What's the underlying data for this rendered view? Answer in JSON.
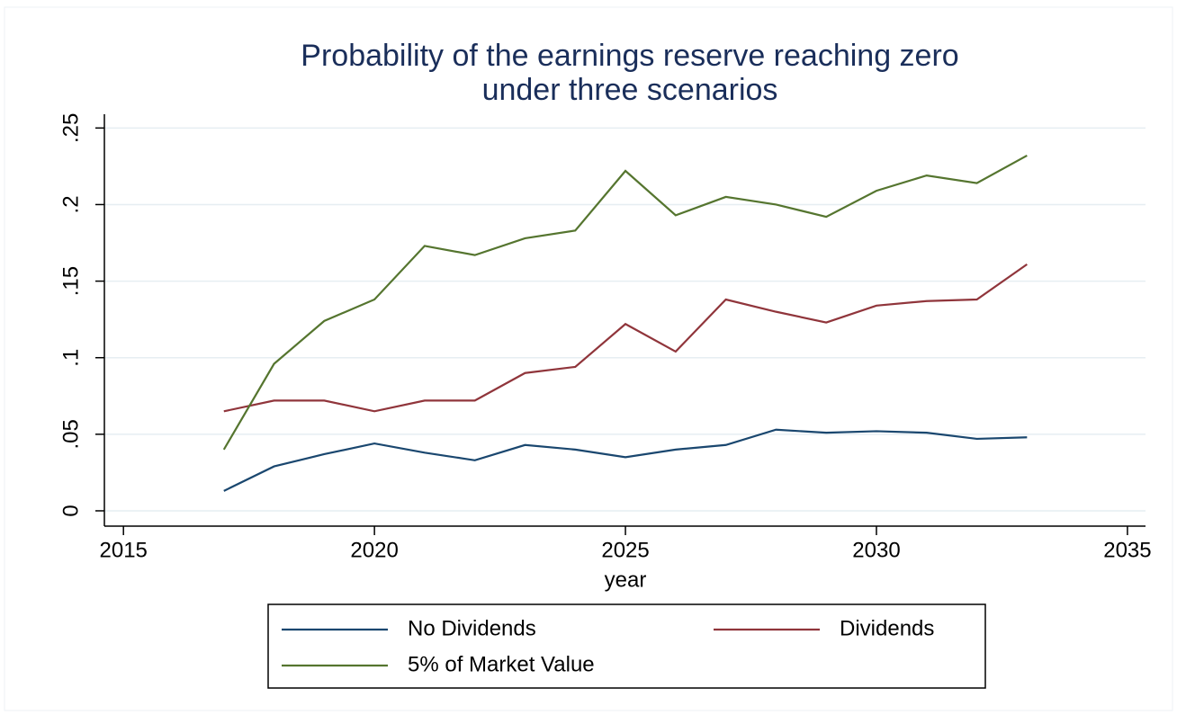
{
  "chart_data": {
    "type": "line",
    "title": [
      "Probability of the earnings reserve reaching zero",
      "under three scenarios"
    ],
    "xlabel": "year",
    "x": [
      2017,
      2018,
      2019,
      2020,
      2021,
      2022,
      2023,
      2024,
      2025,
      2026,
      2027,
      2028,
      2029,
      2030,
      2031,
      2032,
      2033
    ],
    "series": [
      {
        "name": "No Dividends",
        "color": "#1a476f",
        "values": [
          0.013,
          0.029,
          0.037,
          0.044,
          0.038,
          0.033,
          0.043,
          0.04,
          0.035,
          0.04,
          0.043,
          0.053,
          0.051,
          0.052,
          0.051,
          0.047,
          0.048
        ]
      },
      {
        "name": "Dividends",
        "color": "#90353b",
        "values": [
          0.065,
          0.072,
          0.072,
          0.065,
          0.072,
          0.072,
          0.09,
          0.094,
          0.122,
          0.104,
          0.138,
          0.13,
          0.123,
          0.134,
          0.137,
          0.138,
          0.161
        ]
      },
      {
        "name": "5% of Market Value",
        "color": "#55752f",
        "values": [
          0.04,
          0.096,
          0.124,
          0.138,
          0.173,
          0.167,
          0.178,
          0.183,
          0.222,
          0.193,
          0.205,
          0.2,
          0.192,
          0.209,
          0.219,
          0.214,
          0.232
        ]
      }
    ],
    "xlim": [
      2014.62,
      2035.36
    ],
    "xticks": [
      2015,
      2020,
      2025,
      2030,
      2035
    ],
    "ylim": [
      -0.01,
      0.259
    ],
    "yticks": [
      0,
      {
        "value": 0.05,
        "label": ".05"
      },
      {
        "value": 0.1,
        "label": ".1"
      },
      {
        "value": 0.15,
        "label": ".15"
      },
      {
        "value": 0.2,
        "label": ".2"
      },
      {
        "value": 0.25,
        "label": ".25"
      }
    ],
    "grid": true,
    "legend": "bottom"
  }
}
